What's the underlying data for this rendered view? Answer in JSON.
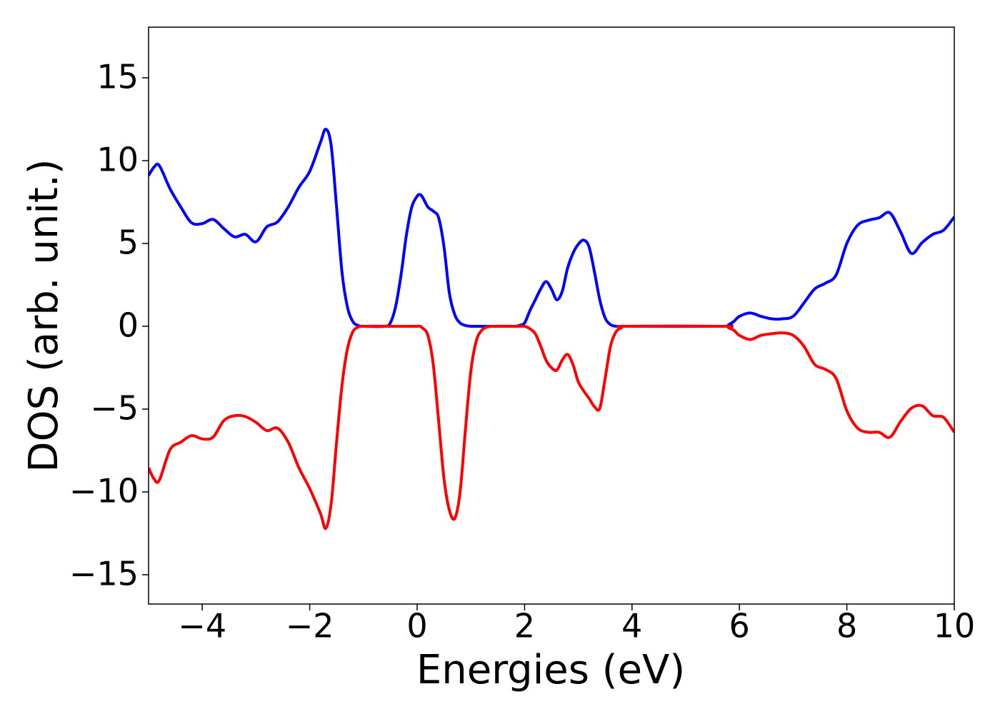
{
  "chart_data": {
    "type": "line",
    "xlabel": "Energies (eV)",
    "ylabel": "DOS (arb. unit.)",
    "xlim": [
      -5,
      10
    ],
    "ylim": [
      -16.77,
      18.06
    ],
    "xticks": [
      {
        "value": -4,
        "label": "−4"
      },
      {
        "value": -2,
        "label": "−2"
      },
      0,
      2,
      4,
      6,
      8,
      10
    ],
    "yticks": [
      {
        "value": -15,
        "label": "−15"
      },
      {
        "value": -10,
        "label": "−10"
      },
      {
        "value": -5,
        "label": "−5"
      },
      0,
      5,
      10,
      15
    ],
    "grid": false,
    "x": [
      -5,
      -4.9,
      -4.8,
      -4.6,
      -4.4,
      -4.2,
      -4,
      -3.8,
      -3.6,
      -3.4,
      -3.2,
      -3,
      -2.8,
      -2.6,
      -2.4,
      -2.2,
      -2,
      -1.8,
      -1.7,
      -1.6,
      -1.5,
      -1.4,
      -1.3,
      -1.2,
      -1.1,
      -1,
      -0.6,
      -0.5,
      -0.4,
      -0.3,
      -0.2,
      -0.1,
      0,
      0.05,
      0.1,
      0.2,
      0.3,
      0.4,
      0.5,
      0.6,
      0.7,
      0.8,
      0.9,
      1,
      1.1,
      1.2,
      1.3,
      1.4,
      1.8,
      1.9,
      2,
      2.1,
      2.2,
      2.3,
      2.4,
      2.5,
      2.6,
      2.7,
      2.8,
      2.9,
      3,
      3.1,
      3.2,
      3.3,
      3.4,
      3.5,
      3.6,
      3.7,
      3.8,
      3.9,
      5.7,
      5.8,
      5.9,
      6,
      6.2,
      6.4,
      6.6,
      6.8,
      7,
      7.2,
      7.4,
      7.6,
      7.8,
      8,
      8.2,
      8.4,
      8.6,
      8.8,
      9,
      9.2,
      9.4,
      9.6,
      9.8,
      10
    ],
    "series": [
      {
        "color": "#0000ff",
        "values": [
          9.1,
          9.6,
          9.7,
          8.3,
          7.2,
          6.25,
          6.2,
          6.45,
          5.9,
          5.4,
          5.55,
          5.1,
          6.0,
          6.3,
          7.2,
          8.4,
          9.35,
          11.1,
          11.9,
          10.9,
          7.2,
          3.3,
          1.2,
          0.3,
          0.05,
          0,
          0,
          0.2,
          1.2,
          3.1,
          5.5,
          7.2,
          7.85,
          7.95,
          7.8,
          7.2,
          6.95,
          6.55,
          4.8,
          2.0,
          0.7,
          0.2,
          0.05,
          0,
          0,
          0,
          0,
          0,
          0,
          0.05,
          0.2,
          0.95,
          1.6,
          2.25,
          2.7,
          2.25,
          1.6,
          2.1,
          3.5,
          4.4,
          4.95,
          5.2,
          4.8,
          3.3,
          1.6,
          0.5,
          0.1,
          0,
          0,
          0,
          0,
          0.1,
          0.3,
          0.6,
          0.8,
          0.6,
          0.45,
          0.45,
          0.6,
          1.4,
          2.25,
          2.6,
          3.1,
          5.0,
          6.1,
          6.4,
          6.55,
          6.85,
          5.7,
          4.4,
          5.05,
          5.55,
          5.8,
          6.6
        ]
      },
      {
        "color": "#ff0000",
        "values": [
          -8.55,
          -9.2,
          -9.3,
          -7.45,
          -7.0,
          -6.6,
          -6.8,
          -6.7,
          -5.7,
          -5.4,
          -5.45,
          -5.8,
          -6.3,
          -6.15,
          -7.0,
          -8.55,
          -9.8,
          -11.3,
          -12.2,
          -10.7,
          -7.0,
          -3.6,
          -1.4,
          -0.35,
          -0.05,
          0,
          0,
          0,
          0,
          0,
          0,
          0,
          0,
          0,
          -0.1,
          -0.55,
          -2.3,
          -5.7,
          -9.2,
          -11.1,
          -11.6,
          -10.0,
          -6.2,
          -2.7,
          -0.9,
          -0.25,
          -0.05,
          0,
          0,
          0,
          0,
          -0.15,
          -0.45,
          -1.2,
          -2.05,
          -2.5,
          -2.65,
          -2.05,
          -1.7,
          -2.3,
          -3.35,
          -3.9,
          -4.35,
          -4.85,
          -4.95,
          -3.15,
          -1.2,
          -0.35,
          -0.1,
          0,
          0,
          -0.1,
          -0.25,
          -0.55,
          -0.8,
          -0.55,
          -0.45,
          -0.4,
          -0.55,
          -1.2,
          -2.3,
          -2.6,
          -3.15,
          -5.1,
          -6.15,
          -6.4,
          -6.4,
          -6.7,
          -5.75,
          -4.95,
          -4.8,
          -5.4,
          -5.5,
          -6.4
        ]
      }
    ]
  }
}
